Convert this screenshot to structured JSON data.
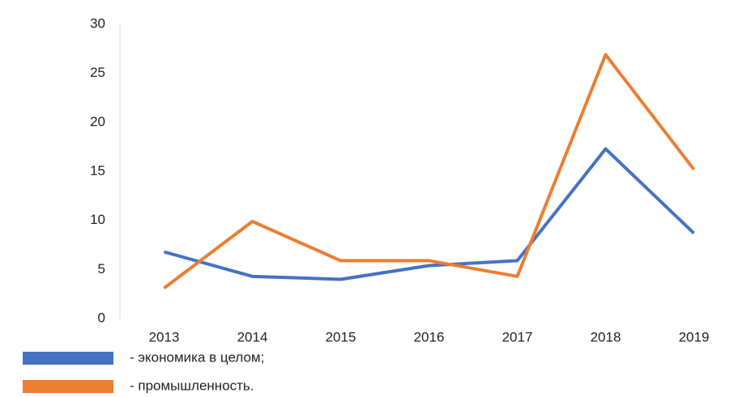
{
  "chart_data": {
    "type": "line",
    "categories": [
      "2013",
      "2014",
      "2015",
      "2016",
      "2017",
      "2018",
      "2019"
    ],
    "series": [
      {
        "name": "- экономика в целом;",
        "color": "#4472c4",
        "values": [
          6.8,
          4.3,
          4.0,
          5.4,
          5.9,
          17.3,
          8.7
        ]
      },
      {
        "name": "- промышленность.",
        "color": "#ed7d31",
        "values": [
          3.1,
          9.9,
          5.9,
          5.9,
          4.3,
          26.9,
          15.2
        ]
      }
    ],
    "ylim": [
      0,
      30
    ],
    "yticks": [
      0,
      5,
      10,
      15,
      20,
      25,
      30
    ],
    "grid": false
  }
}
